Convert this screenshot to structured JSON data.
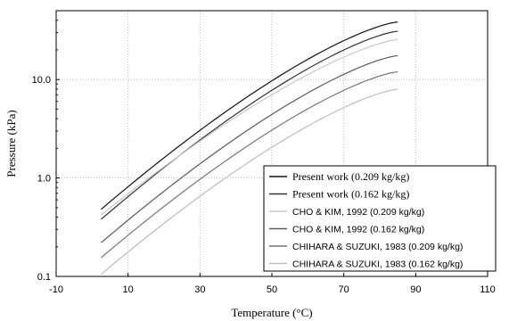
{
  "chart_data": {
    "type": "line",
    "xlabel": "Temperature (°C)",
    "ylabel": "Pressure (kPa)",
    "xlim": [
      -10,
      110
    ],
    "ylim": [
      0.1,
      50
    ],
    "y_scale": "log",
    "grid": true,
    "x_ticks": [
      -10,
      10,
      30,
      50,
      70,
      90,
      110
    ],
    "x_tick_labels": [
      "-10",
      "10",
      "30",
      "50",
      "70",
      "90",
      "110"
    ],
    "y_ticks": [
      0.1,
      1,
      10
    ],
    "y_tick_labels": [
      "0.1",
      "1.0",
      "10.0"
    ],
    "legend_position": "bottom-right",
    "series": [
      {
        "name": "Present work (0.209 kg/kg)",
        "color": "#111111",
        "x": [
          2.5,
          85
        ],
        "y": [
          0.48,
          38.5
        ]
      },
      {
        "name": "Present work (0.162 kg/kg)",
        "color": "#333333",
        "x": [
          2.5,
          85
        ],
        "y": [
          0.38,
          31.0
        ]
      },
      {
        "name": "CHO & KIM, 1992 (0.209 kg/kg)",
        "color": "#c8c8c8",
        "x": [
          2.5,
          85
        ],
        "y": [
          0.42,
          25.5
        ]
      },
      {
        "name": "CHO & KIM, 1992 (0.162 kg/kg)",
        "color": "#5a5a5a",
        "x": [
          2.5,
          85
        ],
        "y": [
          0.22,
          17.5
        ]
      },
      {
        "name": "CHIHARA & SUZUKI, 1983 (0.209 kg/kg)",
        "color": "#777777",
        "x": [
          2.5,
          85
        ],
        "y": [
          0.155,
          12.0
        ]
      },
      {
        "name": "CHIHARA & SUZUKI, 1983 (0.162 kg/kg)",
        "color": "#bdbdbd",
        "x": [
          2.5,
          85
        ],
        "y": [
          0.105,
          8.0
        ]
      }
    ]
  }
}
